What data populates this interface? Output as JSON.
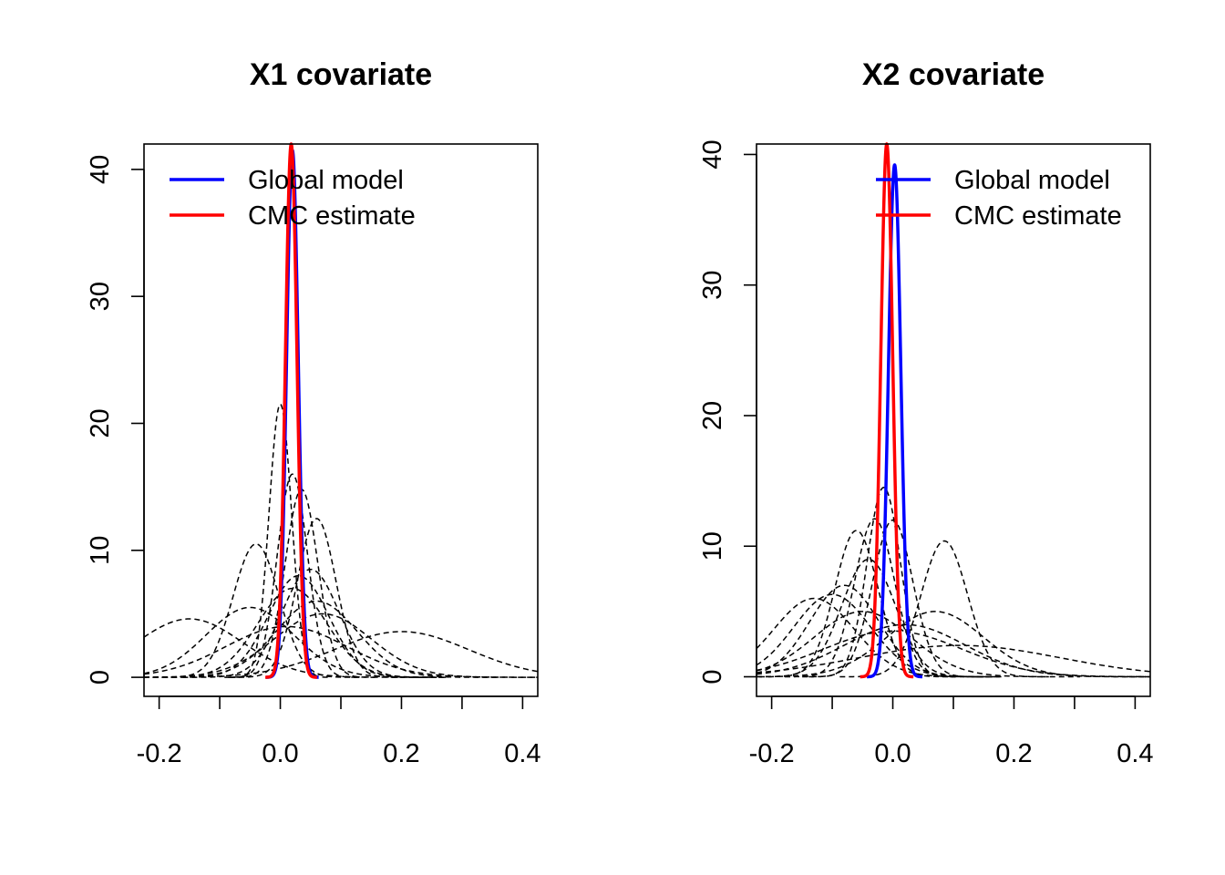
{
  "chart_data": [
    {
      "type": "line",
      "title": "X1 covariate",
      "xlabel": "",
      "ylabel": "",
      "xlim": [
        -0.225,
        0.425
      ],
      "ylim": [
        -1.5,
        42
      ],
      "x_ticks": [
        -0.2,
        -0.1,
        0.0,
        0.1,
        0.2,
        0.3,
        0.4
      ],
      "x_tick_labels": [
        "-0.2",
        "0.0",
        "0.2",
        "0.4"
      ],
      "y_ticks": [
        0,
        10,
        20,
        30,
        40
      ],
      "y_tick_labels": [
        "0",
        "10",
        "20",
        "30",
        "40"
      ],
      "legend": {
        "position": "top-left",
        "entries": [
          {
            "label": "Global model",
            "color": "#0000ff"
          },
          {
            "label": "CMC estimate",
            "color": "#ff0000"
          }
        ]
      },
      "series": [
        {
          "role": "global",
          "color": "#0000ff",
          "mean": 0.02,
          "peak": 41.5
        },
        {
          "role": "cmc",
          "color": "#ff0000",
          "mean": 0.018,
          "peak": 42.0
        }
      ],
      "subsamples": [
        {
          "mean": -0.15,
          "peak": 4.6
        },
        {
          "mean": 0.2,
          "peak": 3.6
        },
        {
          "mean": -0.05,
          "peak": 5.5
        },
        {
          "mean": -0.04,
          "peak": 10.5
        },
        {
          "mean": 0.0,
          "peak": 21.5
        },
        {
          "mean": 0.02,
          "peak": 16.0
        },
        {
          "mean": 0.035,
          "peak": 14.8
        },
        {
          "mean": 0.06,
          "peak": 12.5
        },
        {
          "mean": 0.03,
          "peak": 8.0
        },
        {
          "mean": 0.05,
          "peak": 8.5
        },
        {
          "mean": 0.06,
          "peak": 6.0
        },
        {
          "mean": 0.02,
          "peak": 7.0
        },
        {
          "mean": 0.07,
          "peak": 5.0
        },
        {
          "mean": 0.01,
          "peak": 4.0
        }
      ]
    },
    {
      "type": "line",
      "title": "X2 covariate",
      "xlabel": "",
      "ylabel": "",
      "xlim": [
        -0.225,
        0.425
      ],
      "ylim": [
        -1.5,
        40.8
      ],
      "x_ticks": [
        -0.2,
        -0.1,
        0.0,
        0.1,
        0.2,
        0.3,
        0.4
      ],
      "x_tick_labels": [
        "-0.2",
        "0.0",
        "0.2",
        "0.4"
      ],
      "y_ticks": [
        0,
        10,
        20,
        30,
        40
      ],
      "y_tick_labels": [
        "0",
        "10",
        "20",
        "30",
        "40"
      ],
      "legend": {
        "position": "top-right",
        "entries": [
          {
            "label": "Global model",
            "color": "#0000ff"
          },
          {
            "label": "CMC estimate",
            "color": "#ff0000"
          }
        ]
      },
      "series": [
        {
          "role": "global",
          "color": "#0000ff",
          "mean": 0.003,
          "peak": 39.2
        },
        {
          "role": "cmc",
          "color": "#ff0000",
          "mean": -0.01,
          "peak": 40.8
        }
      ],
      "subsamples": [
        {
          "mean": -0.13,
          "peak": 6.0
        },
        {
          "mean": -0.1,
          "peak": 6.3
        },
        {
          "mean": -0.08,
          "peak": 7.0
        },
        {
          "mean": -0.06,
          "peak": 11.2
        },
        {
          "mean": -0.03,
          "peak": 12.1
        },
        {
          "mean": -0.015,
          "peak": 14.5
        },
        {
          "mean": 0.0,
          "peak": 12.0
        },
        {
          "mean": -0.04,
          "peak": 9.0
        },
        {
          "mean": -0.05,
          "peak": 5.0
        },
        {
          "mean": 0.085,
          "peak": 10.4
        },
        {
          "mean": 0.07,
          "peak": 5.0
        },
        {
          "mean": 0.11,
          "peak": 2.4
        },
        {
          "mean": 0.02,
          "peak": 4.0
        },
        {
          "mean": 0.0,
          "peak": 3.5
        }
      ]
    }
  ]
}
